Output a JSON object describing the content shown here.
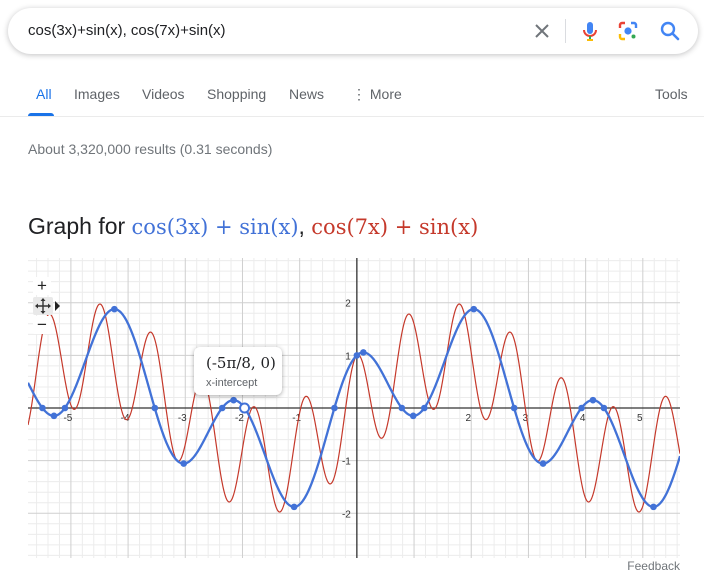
{
  "search": {
    "query": "cos(3x)+sin(x), cos(7x)+sin(x)",
    "icons": [
      "clear-icon",
      "mic-icon",
      "lens-icon",
      "search-icon"
    ]
  },
  "tabs": [
    {
      "label": "All",
      "active": true
    },
    {
      "label": "Images"
    },
    {
      "label": "Videos"
    },
    {
      "label": "Shopping"
    },
    {
      "label": "News"
    },
    {
      "label": "⋮ More"
    }
  ],
  "tools_label": "Tools",
  "result_stats": "About 3,320,000 results (0.31 seconds)",
  "graph": {
    "title_prefix": "Graph for ",
    "func1": "cos(3x) + sin(x)",
    "separator": ", ",
    "func2": "cos(7x) + sin(x)",
    "controls": {
      "zoom_in": "+",
      "zoom_out": "−",
      "pan": "pan-icon"
    },
    "tooltip": {
      "coord": "(-5π/8, 0)",
      "label": "x-intercept"
    }
  },
  "chart_data": {
    "type": "line",
    "series": [
      {
        "expression": "cos(3x)+sin(x)",
        "color": "#4272d7"
      },
      {
        "expression": "cos(7x)+sin(x)",
        "color": "#c5392b"
      }
    ],
    "xlim": [
      -5.75,
      5.65
    ],
    "ylim": [
      -2.85,
      2.85
    ],
    "x_ticks": [
      -5,
      -4,
      -3,
      -2,
      -1,
      2,
      3,
      4,
      5
    ],
    "y_ticks": [
      2,
      1,
      -1,
      -2
    ],
    "grid": true,
    "highlight_point": {
      "x": -1.9635,
      "y": 0
    }
  },
  "feedback_label": "Feedback"
}
